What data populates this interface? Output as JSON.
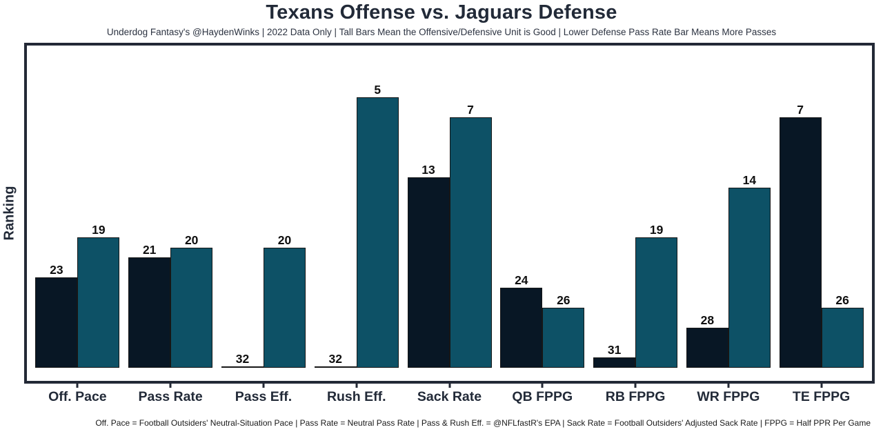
{
  "header": {
    "title": "Texans Offense vs. Jaguars Defense",
    "subtitle": "Underdog Fantasy's @HaydenWinks | 2022 Data Only | Tall Bars Mean the Offensive/Defensive Unit is Good | Lower Defense Pass Rate Bar Means More Passes"
  },
  "footer": {
    "footnote": "Off. Pace = Football Outsiders' Neutral-Situation Pace | Pass Rate = Neutral Pass Rate | Pass & Rush Eff. = @NFLfastR's EPA | Sack Rate = Football Outsiders' Adjusted Sack Rate | FPPG = Half PPR Per Game"
  },
  "chart_data": {
    "type": "bar",
    "title": "Texans Offense vs. Jaguars Defense",
    "xlabel": "",
    "ylabel": "Ranking",
    "categories": [
      "Off. Pace",
      "Pass Rate",
      "Pass Eff.",
      "Rush Eff.",
      "Sack Rate",
      "QB FPPG",
      "RB FPPG",
      "WR FPPG",
      "TE FPPG"
    ],
    "series": [
      {
        "name": "Texans Offense",
        "color": "#081725",
        "ranks": [
          23,
          21,
          32,
          32,
          13,
          24,
          31,
          28,
          7
        ]
      },
      {
        "name": "Jaguars Defense",
        "color": "#0d5166",
        "ranks": [
          19,
          20,
          20,
          5,
          7,
          26,
          19,
          14,
          26
        ]
      }
    ],
    "value_labels_shown": true,
    "bar_height_rule": "height proportional to (32 - rank); rank 32 renders as flat line at baseline",
    "y_tick_labels": "none",
    "grid": false,
    "legend_position": "none"
  },
  "colors": {
    "frame_border": "#232936",
    "title_text": "#222a38",
    "axis_label_text": "#222a38",
    "value_label_text": "#0f0f0f",
    "bar_outline": "#161616",
    "background": "#ffffff"
  }
}
